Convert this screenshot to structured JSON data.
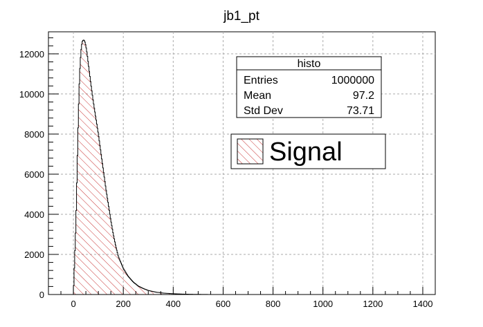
{
  "chart_data": {
    "type": "histogram",
    "title": "jb1_pt",
    "xlabel": "",
    "ylabel": "",
    "xlim": [
      -100,
      1450
    ],
    "ylim": [
      0,
      13100
    ],
    "xticks": [
      0,
      200,
      400,
      600,
      800,
      1000,
      1200,
      1400
    ],
    "yticks": [
      0,
      2000,
      4000,
      6000,
      8000,
      10000,
      12000
    ],
    "grid": true,
    "fill": "hatched",
    "hatch_color": "#c83232",
    "line_color": "#000000",
    "series": [
      {
        "name": "Signal",
        "x": [
          0,
          10,
          20,
          25,
          30,
          35,
          40,
          45,
          50,
          55,
          60,
          70,
          80,
          90,
          100,
          110,
          120,
          130,
          140,
          150,
          160,
          170,
          180,
          200,
          220,
          240,
          260,
          280,
          300,
          330,
          360,
          400,
          440,
          480,
          520,
          540,
          550
        ],
        "y": [
          0,
          3500,
          9000,
          11000,
          12100,
          12600,
          12700,
          12650,
          12400,
          12000,
          11500,
          10500,
          9600,
          8800,
          8000,
          7100,
          6200,
          5300,
          4500,
          3700,
          3000,
          2400,
          1900,
          1300,
          900,
          620,
          420,
          300,
          200,
          120,
          70,
          40,
          20,
          10,
          5,
          2,
          0
        ]
      }
    ],
    "stats_box": {
      "title": "histo",
      "rows": [
        {
          "label": "Entries",
          "value": "1000000"
        },
        {
          "label": "Mean",
          "value": "97.2"
        },
        {
          "label": "Std Dev",
          "value": "73.71"
        }
      ]
    },
    "legend": {
      "entries": [
        "Signal"
      ],
      "position": "center-right"
    }
  }
}
